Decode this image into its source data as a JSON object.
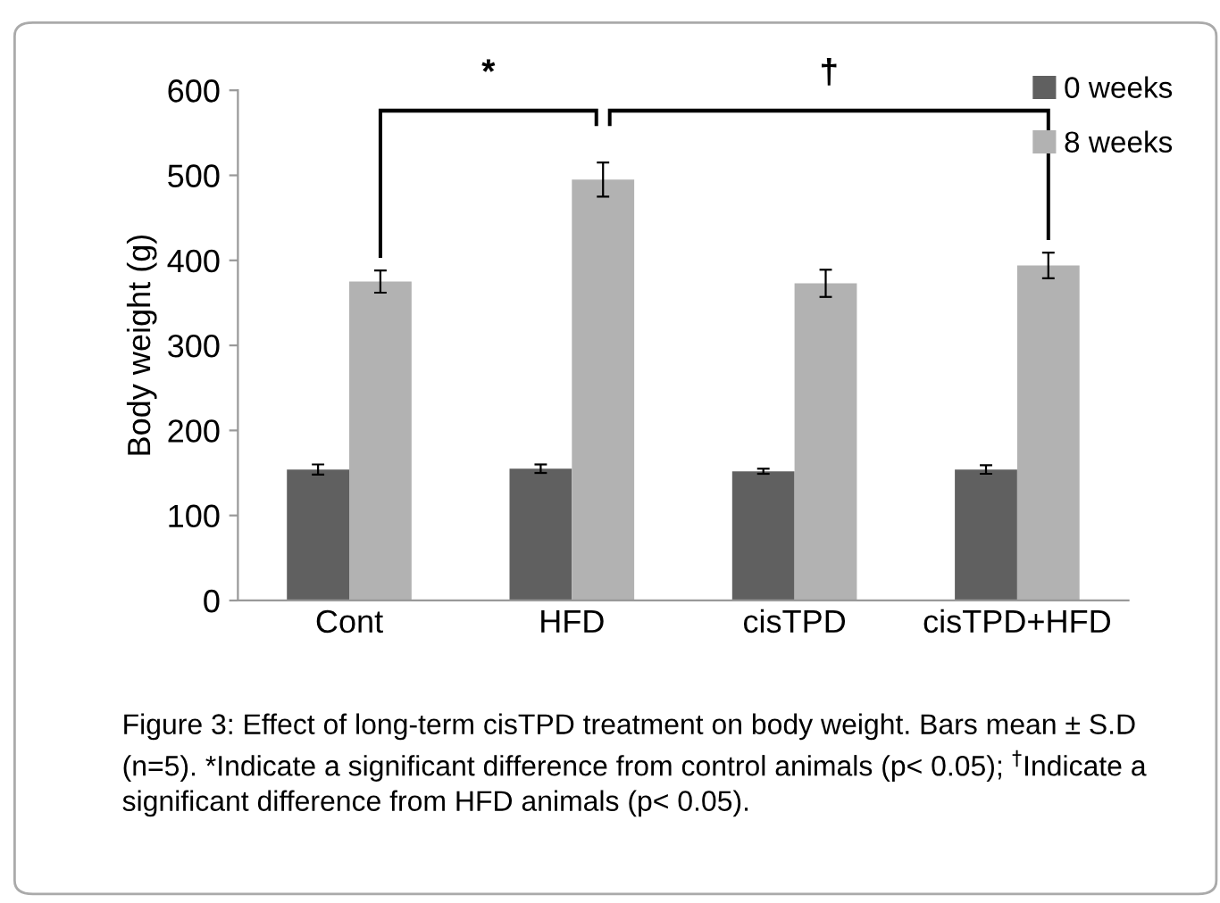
{
  "chart_data": {
    "type": "bar",
    "ylabel": "Body weight (g)",
    "categories": [
      "Cont",
      "HFD",
      "cisTPD",
      "cisTPD+HFD"
    ],
    "series": [
      {
        "name": "0 weeks",
        "color": "#606060",
        "values": [
          154,
          155,
          152,
          154
        ],
        "errors": [
          6,
          5,
          3,
          5
        ]
      },
      {
        "name": "8 weeks",
        "color": "#b2b2b2",
        "values": [
          375,
          495,
          373,
          394
        ],
        "errors": [
          13,
          20,
          16,
          15
        ]
      }
    ],
    "ylim": [
      0,
      600
    ],
    "yticks": [
      0,
      100,
      200,
      300,
      400,
      500,
      600
    ],
    "grid": false,
    "legend": "top right",
    "annotations": [
      "*",
      "†",
      "Figure 3: Effect of long-term cisTPD treatment on body weight. Bars mean ± S.D (n=5). *Indicate a significant difference from control animals (p< 0.05); $^{†}$Indicate a significant difference from HFD animals (p< 0.05)."
    ]
  }
}
